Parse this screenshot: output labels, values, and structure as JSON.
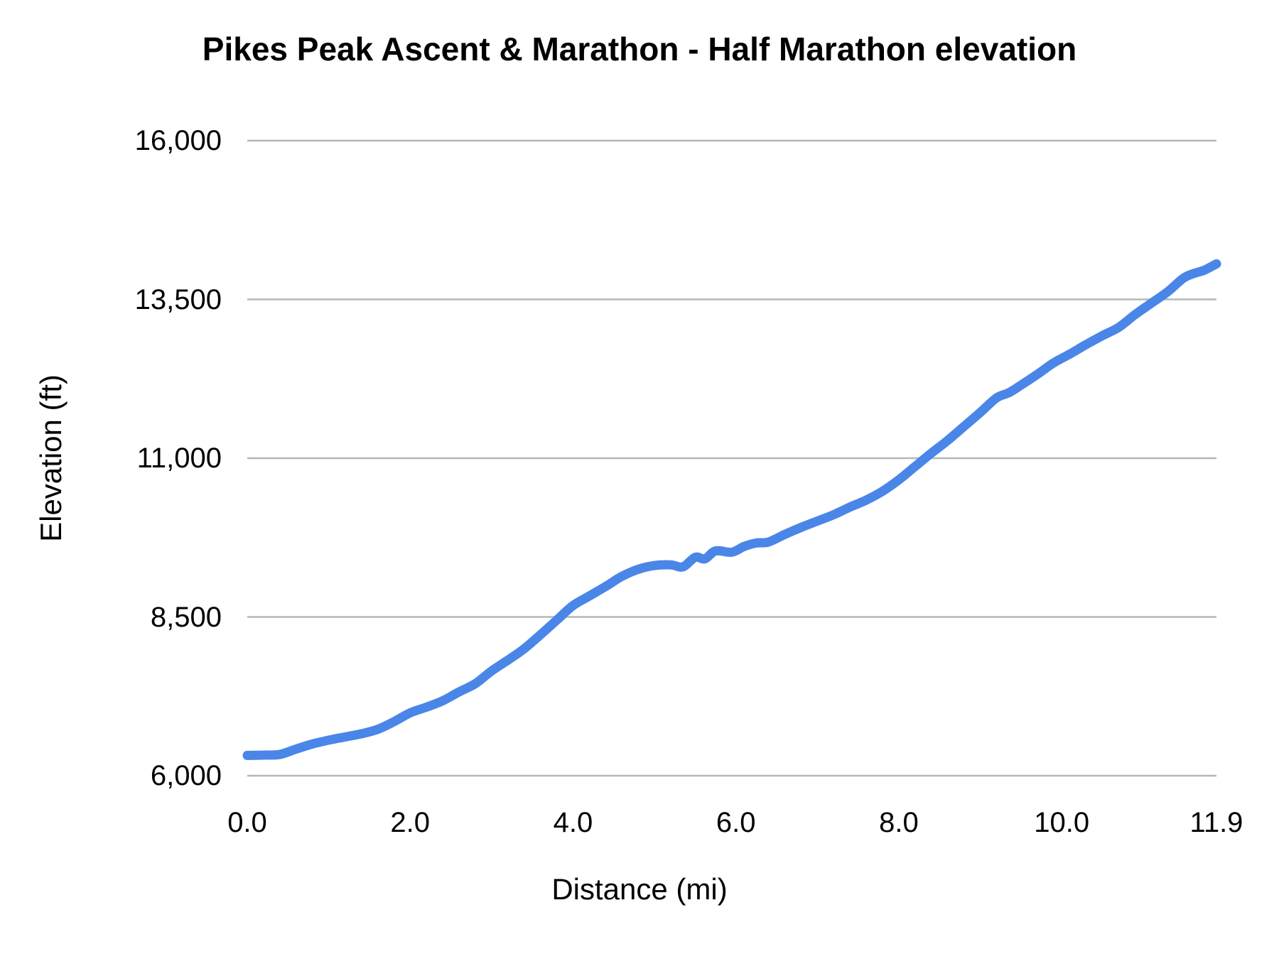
{
  "chart_data": {
    "type": "line",
    "title": "Pikes Peak Ascent & Marathon - Half Marathon elevation",
    "xlabel": "Distance (mi)",
    "ylabel": "Elevation (ft)",
    "x_range": [
      0,
      11.9
    ],
    "y_range": [
      6000,
      16000
    ],
    "grid": "horizontal",
    "legend": "none",
    "x_ticks": [
      {
        "value": 0,
        "label": "0.0"
      },
      {
        "value": 2,
        "label": "2.0"
      },
      {
        "value": 4,
        "label": "4.0"
      },
      {
        "value": 6,
        "label": "6.0"
      },
      {
        "value": 8,
        "label": "8.0"
      },
      {
        "value": 10,
        "label": "10.0"
      },
      {
        "value": 11.9,
        "label": "11.9"
      }
    ],
    "y_ticks": [
      {
        "value": 16000,
        "label": "16,000"
      },
      {
        "value": 13500,
        "label": "13,500"
      },
      {
        "value": 11000,
        "label": "11,000"
      },
      {
        "value": 8500,
        "label": "8,500"
      },
      {
        "value": 6000,
        "label": "6,000"
      }
    ],
    "colors": {
      "line": "#4A86E8",
      "gridline": "#B7B7B7",
      "text": "#000000",
      "background": "#FFFFFF"
    },
    "series": [
      {
        "name": "Elevation",
        "points": [
          [
            0.0,
            6320
          ],
          [
            0.2,
            6325
          ],
          [
            0.4,
            6335
          ],
          [
            0.6,
            6420
          ],
          [
            0.8,
            6500
          ],
          [
            1.0,
            6560
          ],
          [
            1.2,
            6610
          ],
          [
            1.4,
            6660
          ],
          [
            1.6,
            6730
          ],
          [
            1.8,
            6850
          ],
          [
            2.0,
            6990
          ],
          [
            2.2,
            7080
          ],
          [
            2.4,
            7180
          ],
          [
            2.6,
            7320
          ],
          [
            2.8,
            7450
          ],
          [
            3.0,
            7650
          ],
          [
            3.2,
            7820
          ],
          [
            3.4,
            8000
          ],
          [
            3.6,
            8220
          ],
          [
            3.8,
            8450
          ],
          [
            4.0,
            8680
          ],
          [
            4.2,
            8830
          ],
          [
            4.4,
            8980
          ],
          [
            4.6,
            9140
          ],
          [
            4.8,
            9250
          ],
          [
            5.0,
            9310
          ],
          [
            5.2,
            9320
          ],
          [
            5.35,
            9290
          ],
          [
            5.5,
            9440
          ],
          [
            5.62,
            9415
          ],
          [
            5.75,
            9540
          ],
          [
            5.95,
            9520
          ],
          [
            6.1,
            9610
          ],
          [
            6.25,
            9665
          ],
          [
            6.4,
            9680
          ],
          [
            6.6,
            9800
          ],
          [
            6.8,
            9910
          ],
          [
            7.0,
            10010
          ],
          [
            7.2,
            10110
          ],
          [
            7.4,
            10230
          ],
          [
            7.6,
            10340
          ],
          [
            7.8,
            10480
          ],
          [
            8.0,
            10660
          ],
          [
            8.2,
            10870
          ],
          [
            8.4,
            11080
          ],
          [
            8.6,
            11280
          ],
          [
            8.8,
            11500
          ],
          [
            9.0,
            11720
          ],
          [
            9.2,
            11950
          ],
          [
            9.35,
            12030
          ],
          [
            9.5,
            12150
          ],
          [
            9.7,
            12320
          ],
          [
            9.9,
            12500
          ],
          [
            10.1,
            12640
          ],
          [
            10.3,
            12790
          ],
          [
            10.5,
            12930
          ],
          [
            10.7,
            13060
          ],
          [
            10.9,
            13260
          ],
          [
            11.1,
            13440
          ],
          [
            11.3,
            13620
          ],
          [
            11.5,
            13840
          ],
          [
            11.65,
            13920
          ],
          [
            11.75,
            13960
          ],
          [
            11.9,
            14060
          ]
        ]
      }
    ]
  }
}
